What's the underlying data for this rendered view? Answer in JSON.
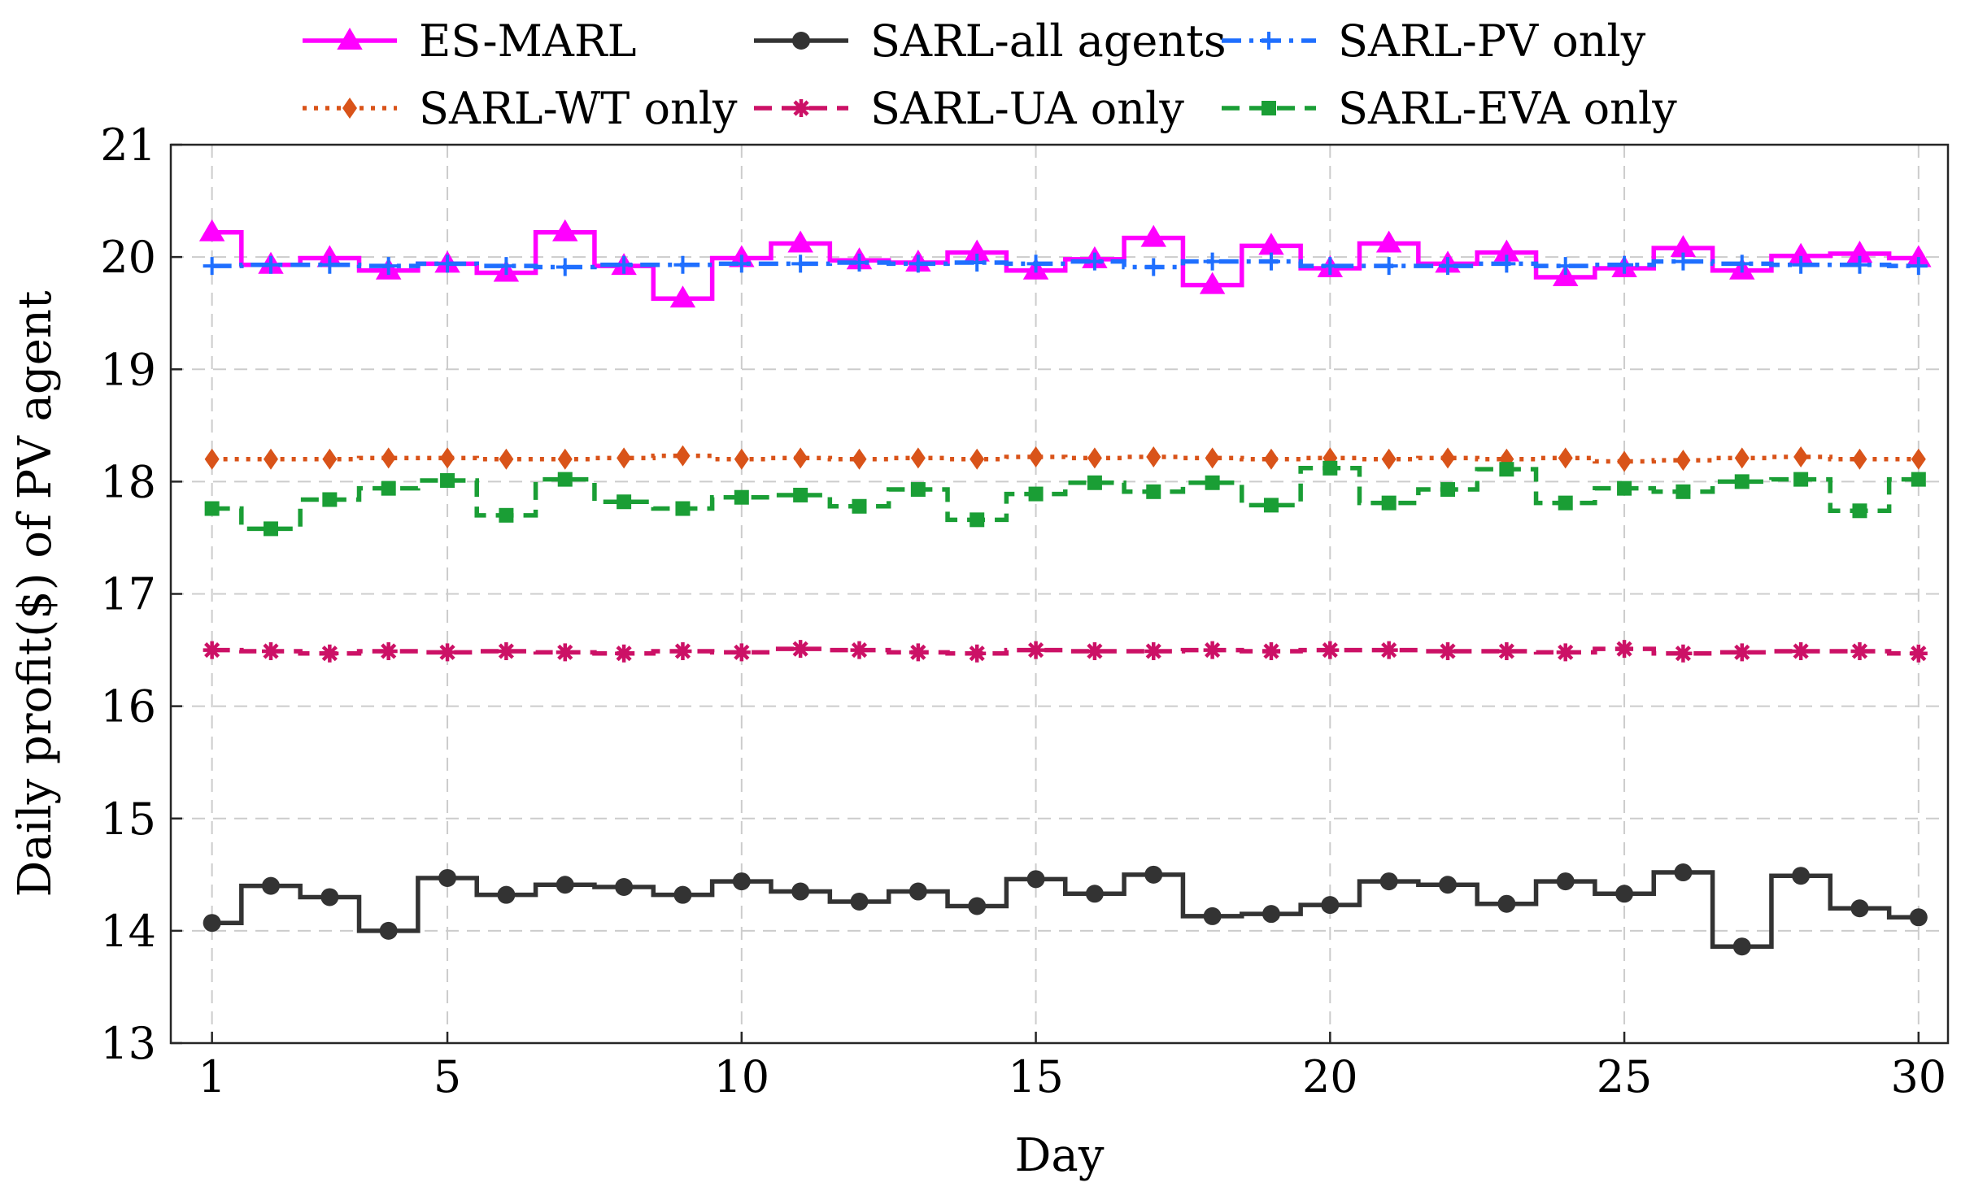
{
  "chart_data": {
    "type": "line",
    "step": true,
    "title": "",
    "xlabel": "Day",
    "ylabel": "Daily profit($) of PV agent",
    "xlim": [
      0.3,
      30.5
    ],
    "ylim": [
      13,
      21
    ],
    "xticks": [
      1,
      5,
      10,
      15,
      20,
      25,
      30
    ],
    "yticks": [
      13,
      14,
      15,
      16,
      17,
      18,
      19,
      20,
      21
    ],
    "grid": true,
    "legend_position": "top",
    "x": [
      1,
      2,
      3,
      4,
      5,
      6,
      7,
      8,
      9,
      10,
      11,
      12,
      13,
      14,
      15,
      16,
      17,
      18,
      19,
      20,
      21,
      22,
      23,
      24,
      25,
      26,
      27,
      28,
      29,
      30
    ],
    "series": [
      {
        "name": "ES-MARL",
        "color": "#ff00ff",
        "marker": "triangle",
        "dash": "solid",
        "values": [
          20.22,
          19.93,
          19.99,
          19.88,
          19.94,
          19.86,
          20.22,
          19.92,
          19.63,
          19.99,
          20.12,
          19.97,
          19.95,
          20.04,
          19.88,
          19.98,
          20.17,
          19.75,
          20.1,
          19.9,
          20.12,
          19.94,
          20.04,
          19.82,
          19.9,
          20.08,
          19.88,
          20.01,
          20.03,
          19.99
        ]
      },
      {
        "name": "SARL-all agents",
        "color": "#333333",
        "marker": "circle",
        "dash": "solid",
        "values": [
          14.07,
          14.4,
          14.3,
          14.0,
          14.47,
          14.32,
          14.41,
          14.39,
          14.32,
          14.44,
          14.35,
          14.26,
          14.35,
          14.22,
          14.46,
          14.33,
          14.5,
          14.13,
          14.15,
          14.23,
          14.44,
          14.41,
          14.24,
          14.44,
          14.33,
          14.52,
          13.86,
          14.49,
          14.2,
          14.12
        ]
      },
      {
        "name": "SARL-PV only",
        "color": "#1f6fff",
        "marker": "plus",
        "dash": "dashdot",
        "values": [
          19.92,
          19.93,
          19.93,
          19.92,
          19.94,
          19.92,
          19.91,
          19.93,
          19.93,
          19.94,
          19.94,
          19.95,
          19.94,
          19.95,
          19.94,
          19.96,
          19.91,
          19.96,
          19.96,
          19.92,
          19.92,
          19.92,
          19.94,
          19.92,
          19.93,
          19.96,
          19.94,
          19.93,
          19.93,
          19.92
        ]
      },
      {
        "name": "SARL-WT only",
        "color": "#d95319",
        "marker": "diamond",
        "dash": "dotted",
        "values": [
          18.2,
          18.2,
          18.2,
          18.21,
          18.21,
          18.2,
          18.2,
          18.21,
          18.23,
          18.2,
          18.21,
          18.2,
          18.21,
          18.2,
          18.22,
          18.21,
          18.22,
          18.21,
          18.2,
          18.21,
          18.2,
          18.21,
          18.2,
          18.21,
          18.18,
          18.19,
          18.21,
          18.22,
          18.2,
          18.2
        ]
      },
      {
        "name": "SARL-UA only",
        "color": "#cc1166",
        "marker": "asterisk",
        "dash": "dashed",
        "values": [
          16.5,
          16.49,
          16.47,
          16.49,
          16.48,
          16.49,
          16.48,
          16.47,
          16.49,
          16.48,
          16.51,
          16.5,
          16.48,
          16.47,
          16.5,
          16.49,
          16.49,
          16.5,
          16.49,
          16.5,
          16.5,
          16.49,
          16.49,
          16.48,
          16.51,
          16.47,
          16.48,
          16.49,
          16.49,
          16.47
        ]
      },
      {
        "name": "SARL-EVA only",
        "color": "#1a9e35",
        "marker": "square",
        "dash": "dashed",
        "values": [
          17.76,
          17.58,
          17.84,
          17.94,
          18.01,
          17.7,
          18.02,
          17.82,
          17.76,
          17.86,
          17.88,
          17.78,
          17.93,
          17.66,
          17.89,
          17.99,
          17.91,
          17.99,
          17.79,
          18.12,
          17.81,
          17.93,
          18.11,
          17.81,
          17.94,
          17.91,
          18.0,
          18.02,
          17.74,
          18.02
        ]
      }
    ]
  }
}
